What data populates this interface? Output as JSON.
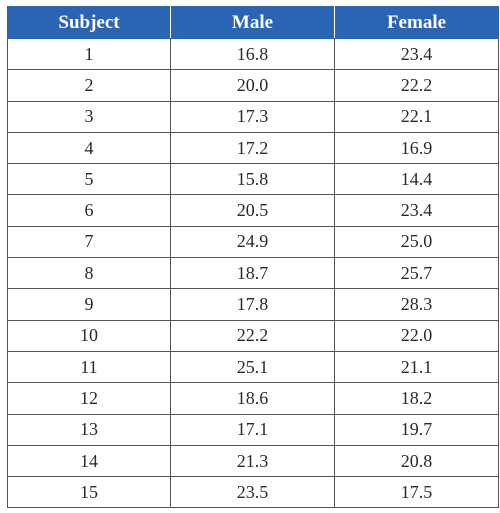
{
  "table": {
    "columns": [
      "Subject",
      "Male",
      "Female"
    ],
    "rows": [
      [
        "1",
        "16.8",
        "23.4"
      ],
      [
        "2",
        "20.0",
        "22.2"
      ],
      [
        "3",
        "17.3",
        "22.1"
      ],
      [
        "4",
        "17.2",
        "16.9"
      ],
      [
        "5",
        "15.8",
        "14.4"
      ],
      [
        "6",
        "20.5",
        "23.4"
      ],
      [
        "7",
        "24.9",
        "25.0"
      ],
      [
        "8",
        "18.7",
        "25.7"
      ],
      [
        "9",
        "17.8",
        "28.3"
      ],
      [
        "10",
        "22.2",
        "22.0"
      ],
      [
        "11",
        "25.1",
        "21.1"
      ],
      [
        "12",
        "18.6",
        "18.2"
      ],
      [
        "13",
        "17.1",
        "19.7"
      ],
      [
        "14",
        "21.3",
        "20.8"
      ],
      [
        "15",
        "23.5",
        "17.5"
      ]
    ]
  },
  "colors": {
    "header_background": "#2c64b4",
    "header_text": "#ffffff",
    "border": "#555555"
  }
}
